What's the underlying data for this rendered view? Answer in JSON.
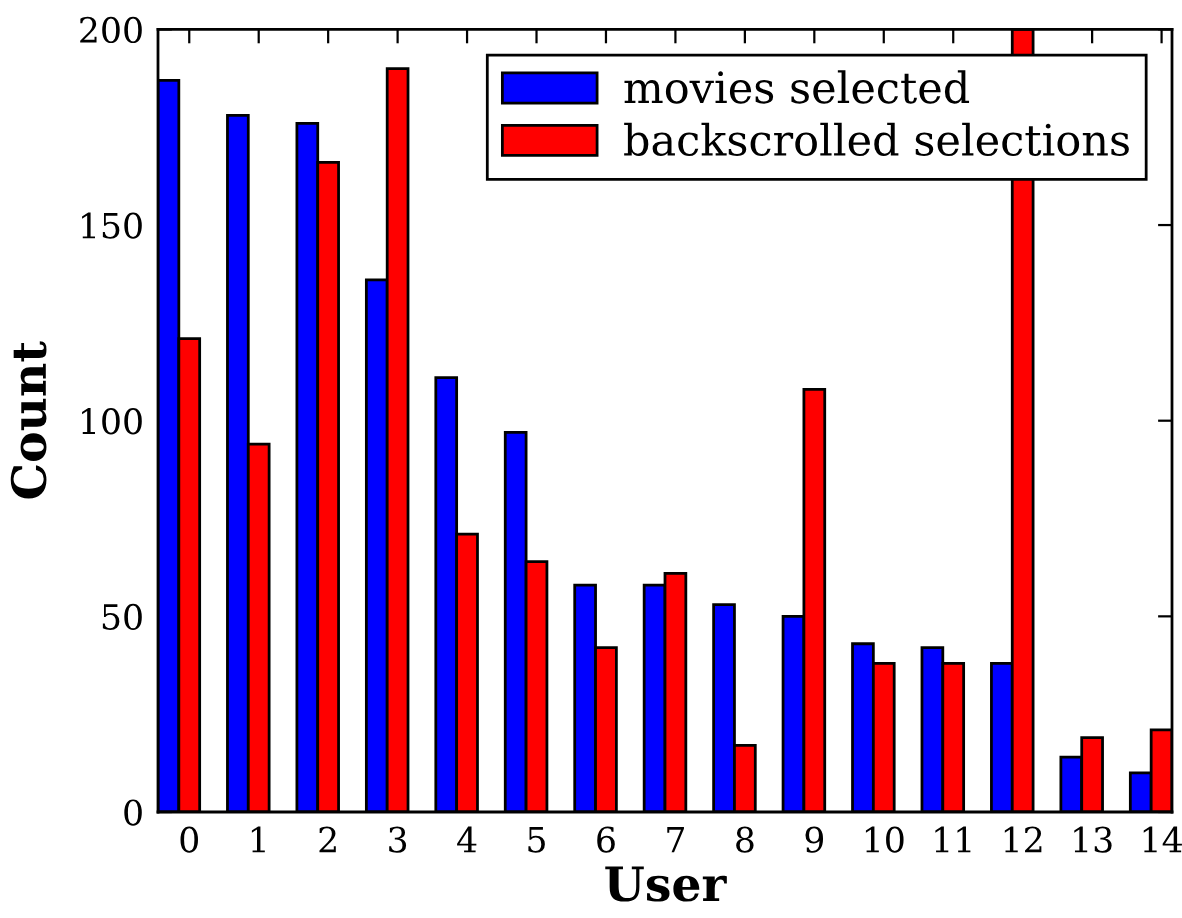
{
  "chart_data": {
    "type": "bar",
    "xlabel": "User",
    "ylabel": "Count",
    "categories": [
      "0",
      "1",
      "2",
      "3",
      "4",
      "5",
      "6",
      "7",
      "8",
      "9",
      "10",
      "11",
      "12",
      "13",
      "14"
    ],
    "series": [
      {
        "name": "movies selected",
        "color": "#0000ff",
        "values": [
          187,
          178,
          176,
          136,
          111,
          97,
          58,
          58,
          53,
          50,
          43,
          42,
          38,
          14,
          10
        ]
      },
      {
        "name": "backscrolled selections",
        "color": "#ff0000",
        "values": [
          121,
          94,
          166,
          190,
          71,
          64,
          42,
          61,
          17,
          108,
          38,
          38,
          200,
          19,
          21
        ]
      }
    ],
    "ylim": [
      0,
      200
    ],
    "yticks": [
      0,
      50,
      100,
      150,
      200
    ],
    "legend": "top right",
    "grid": false
  }
}
